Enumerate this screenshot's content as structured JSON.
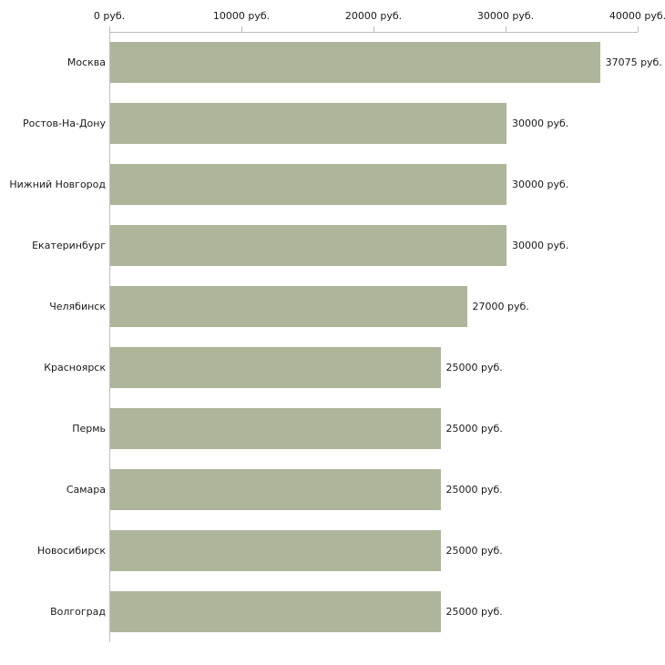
{
  "chart_data": {
    "type": "bar",
    "orientation": "horizontal",
    "title": "",
    "xlabel": "",
    "ylabel": "",
    "categories": [
      "Москва",
      "Ростов-На-Дону",
      "Нижний Новгород",
      "Екатеринбург",
      "Челябинск",
      "Красноярск",
      "Пермь",
      "Самара",
      "Новосибирск",
      "Волгоград"
    ],
    "values": [
      37075,
      30000,
      30000,
      30000,
      27000,
      25000,
      25000,
      25000,
      25000,
      25000
    ],
    "value_labels": [
      "37075 руб.",
      "30000 руб.",
      "30000 руб.",
      "30000 руб.",
      "27000 руб.",
      "25000 руб.",
      "25000 руб.",
      "25000 руб.",
      "25000 руб.",
      "25000 руб."
    ],
    "xlim": [
      0,
      40000
    ],
    "x_ticks": [
      0,
      10000,
      20000,
      30000,
      40000
    ],
    "x_tick_labels": [
      "0 руб.",
      "10000 руб.",
      "20000 руб.",
      "30000 руб.",
      "40000 руб."
    ],
    "grid": false,
    "legend": null,
    "bar_color": "#adb69b",
    "axis_color": "#bdbdbd",
    "text_color": "#1a1a1a"
  }
}
